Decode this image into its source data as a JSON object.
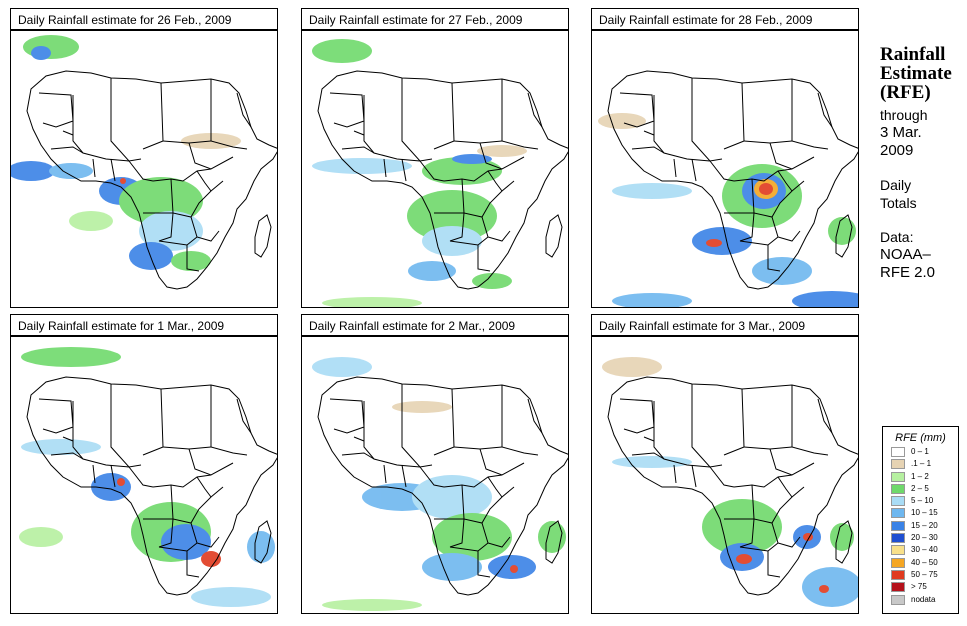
{
  "panels": [
    {
      "title": "Daily Rainfall estimate for  26 Feb., 2009"
    },
    {
      "title": "Daily Rainfall estimate for  27 Feb., 2009"
    },
    {
      "title": "Daily Rainfall estimate for  28 Feb., 2009"
    },
    {
      "title": "Daily Rainfall estimate for  1 Mar., 2009"
    },
    {
      "title": "Daily Rainfall estimate for  2 Mar., 2009"
    },
    {
      "title": "Daily Rainfall estimate for  3 Mar., 2009"
    }
  ],
  "sidebar": {
    "heading_line1": "Rainfall",
    "heading_line2": "Estimate",
    "heading_line3": "(RFE)",
    "through": "through",
    "date_line1": "3 Mar.",
    "date_line2": "2009",
    "daily": "Daily",
    "totals": "Totals",
    "data_label": "Data:",
    "source_line1": "NOAA–",
    "source_line2": "RFE 2.0"
  },
  "legend": {
    "title": "RFE (mm)",
    "items": [
      {
        "label": "0 – 1",
        "color": "#ffffff"
      },
      {
        "label": ".1 – 1",
        "color": "#e6d3b3"
      },
      {
        "label": "1 – 2",
        "color": "#b6f0a0"
      },
      {
        "label": "2 – 5",
        "color": "#6fd96b"
      },
      {
        "label": "5 – 10",
        "color": "#a9dcf5"
      },
      {
        "label": "10 – 15",
        "color": "#6eb7ef"
      },
      {
        "label": "15 – 20",
        "color": "#3a82e6"
      },
      {
        "label": "20 – 30",
        "color": "#1f4fd1"
      },
      {
        "label": "30 – 40",
        "color": "#f8e08a"
      },
      {
        "label": "40 – 50",
        "color": "#f5a623"
      },
      {
        "label": "50 – 75",
        "color": "#e03a1f"
      },
      {
        "label": "> 75",
        "color": "#b5121b"
      },
      {
        "label": "nodata",
        "color": "#c8c8c8"
      }
    ]
  }
}
